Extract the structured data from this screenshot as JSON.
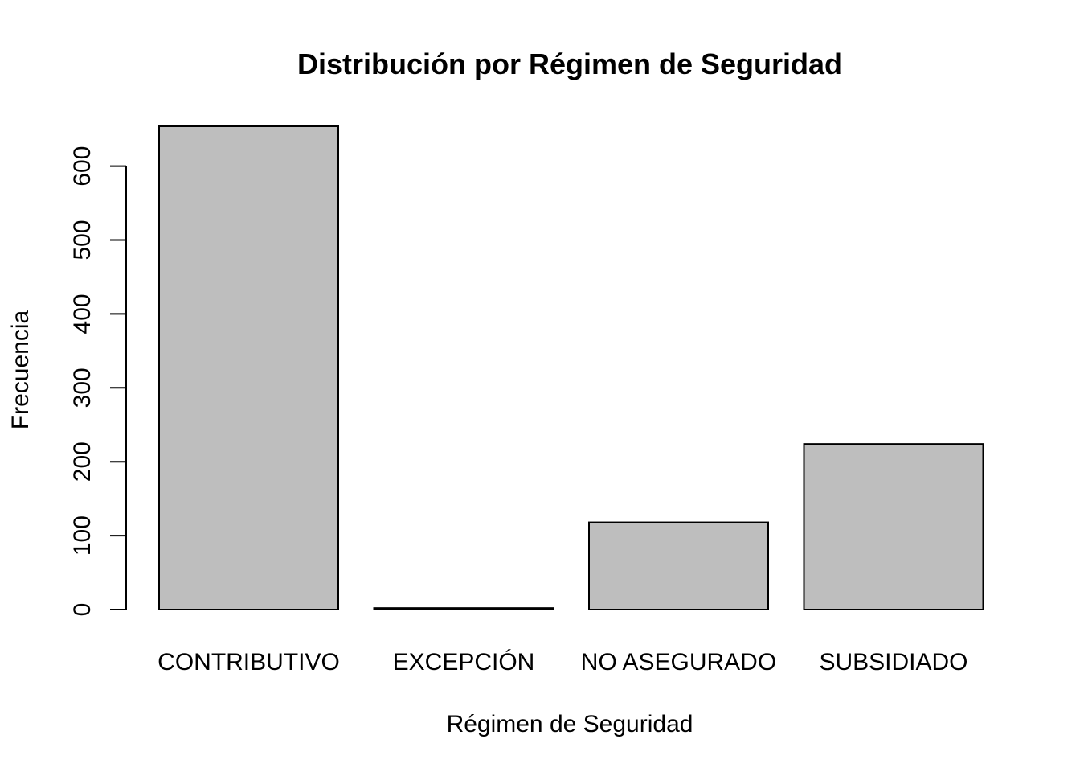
{
  "chart_data": {
    "type": "bar",
    "title": "Distribución por Régimen de Seguridad",
    "xlabel": "Régimen de Seguridad",
    "ylabel": "Frecuencia",
    "categories": [
      "CONTRIBUTIVO",
      "EXCEPCIÓN",
      "NO ASEGURADO",
      "SUBSIDIADO"
    ],
    "values": [
      654,
      2,
      118,
      224
    ],
    "ylim": [
      0,
      654
    ],
    "yticks": [
      0,
      100,
      200,
      300,
      400,
      500,
      600
    ],
    "bar_color": "#bebebe",
    "grid": false,
    "legend": "none"
  }
}
